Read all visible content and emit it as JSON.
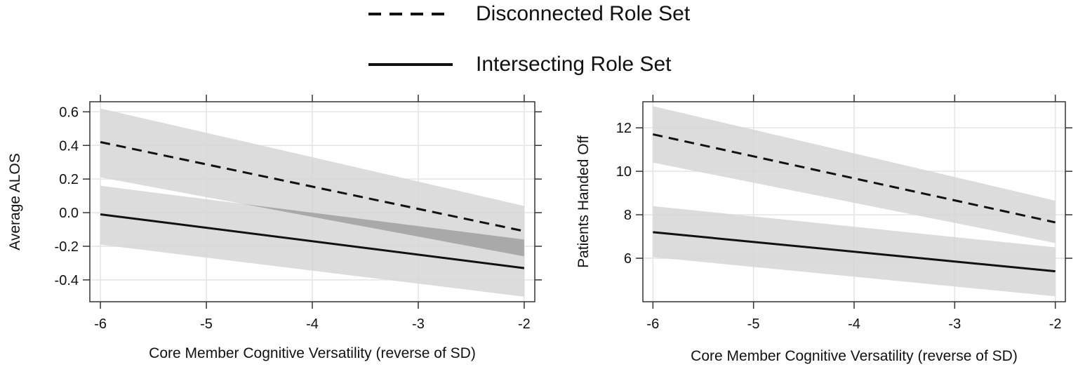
{
  "legend": {
    "disconnected_label": "Disconnected Role Set",
    "intersecting_label": "Intersecting Role Set"
  },
  "colors": {
    "band": "#d6d6d6",
    "band_overlap": "#a9a9a9",
    "line": "#111111",
    "grid": "#e4e4e4",
    "frame": "#333333"
  },
  "chart_data": [
    {
      "type": "line",
      "title": "",
      "xlabel": "Core Member Cognitive Versatility (reverse of SD)",
      "ylabel": "Average ALOS",
      "xlim": [
        -6.1,
        -1.9
      ],
      "ylim": [
        -0.53,
        0.66
      ],
      "x_ticks": [
        -6,
        -5,
        -4,
        -3,
        -2
      ],
      "x_tick_labels": [
        "-6",
        "-5",
        "-4",
        "-3",
        "-2"
      ],
      "y_ticks": [
        0.6,
        0.4,
        0.2,
        0.0,
        -0.2,
        -0.4
      ],
      "y_tick_labels": [
        "0.6",
        "0.4",
        "0.2",
        "0.0",
        "-0.2",
        "-0.4"
      ],
      "series": [
        {
          "name": "Disconnected Role Set",
          "style": "dashed",
          "x": [
            -6,
            -2
          ],
          "y": [
            0.42,
            -0.11
          ],
          "lower": [
            0.21,
            -0.26
          ],
          "upper": [
            0.62,
            0.04
          ]
        },
        {
          "name": "Intersecting Role Set",
          "style": "solid",
          "x": [
            -6,
            -2
          ],
          "y": [
            -0.01,
            -0.33
          ],
          "lower": [
            -0.19,
            -0.5
          ],
          "upper": [
            0.16,
            -0.16
          ]
        }
      ]
    },
    {
      "type": "line",
      "title": "",
      "xlabel": "Core Member Cognitive Versatility (reverse of SD)",
      "ylabel": "Patients Handed Off",
      "xlim": [
        -6.1,
        -1.9
      ],
      "ylim": [
        4.0,
        13.2
      ],
      "x_ticks": [
        -6,
        -5,
        -4,
        -3,
        -2
      ],
      "x_tick_labels": [
        "-6",
        "-5",
        "-4",
        "-3",
        "-2"
      ],
      "y_ticks": [
        12,
        10,
        8,
        6
      ],
      "y_tick_labels": [
        "12",
        "10",
        "8",
        "6"
      ],
      "series": [
        {
          "name": "Disconnected Role Set",
          "style": "dashed",
          "x": [
            -6,
            -2
          ],
          "y": [
            11.7,
            7.65
          ],
          "lower": [
            10.4,
            6.7
          ],
          "upper": [
            13.0,
            8.65
          ]
        },
        {
          "name": "Intersecting Role Set",
          "style": "solid",
          "x": [
            -6,
            -2
          ],
          "y": [
            7.2,
            5.4
          ],
          "lower": [
            6.05,
            4.25
          ],
          "upper": [
            8.4,
            6.5
          ]
        }
      ]
    }
  ]
}
